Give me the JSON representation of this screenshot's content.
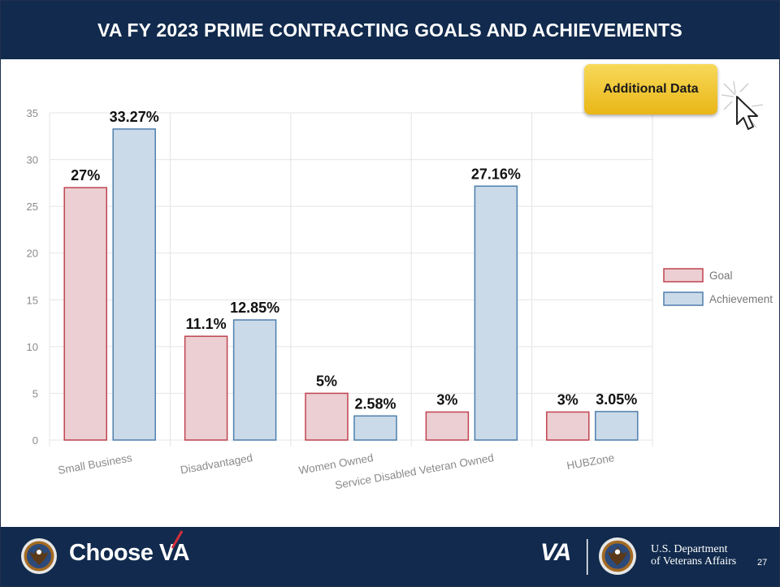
{
  "slide": {
    "title": "VA FY 2023 PRIME CONTRACTING GOALS AND ACHIEVEMENTS",
    "button_label": "Additional Data",
    "page_number": "27"
  },
  "footer": {
    "choose_prefix": "Choose",
    "choose_va": "VA",
    "va_logo_text": "VA",
    "dept_line1": "U.S. Department",
    "dept_line2": "of Veterans Affairs"
  },
  "colors": {
    "header_bg": "#112a4d",
    "goal_fill": "#ebcfd3",
    "goal_stroke": "#c0434f",
    "achievement_fill": "#cbdae8",
    "achievement_stroke": "#4f7fad",
    "button": "#f0c63a",
    "accent_red": "#d32f3a"
  },
  "chart_data": {
    "type": "bar",
    "categories": [
      "Small Business",
      "Disadvantaged",
      "Women Owned",
      "Service Disabled Veteran Owned",
      "HUBZone"
    ],
    "series": [
      {
        "name": "Goal",
        "values": [
          27,
          11.1,
          5,
          3,
          3
        ],
        "labels": [
          "27%",
          "11.1%",
          "5%",
          "3%",
          "3%"
        ]
      },
      {
        "name": "Achievement",
        "values": [
          33.27,
          12.85,
          2.58,
          27.16,
          3.05
        ],
        "labels": [
          "33.27%",
          "12.85%",
          "2.58%",
          "27.16%",
          "3.05%"
        ]
      }
    ],
    "ylim": [
      0,
      35
    ],
    "yticks": [
      0,
      5,
      10,
      15,
      20,
      25,
      30,
      35
    ],
    "grid": true,
    "legend": "right"
  }
}
